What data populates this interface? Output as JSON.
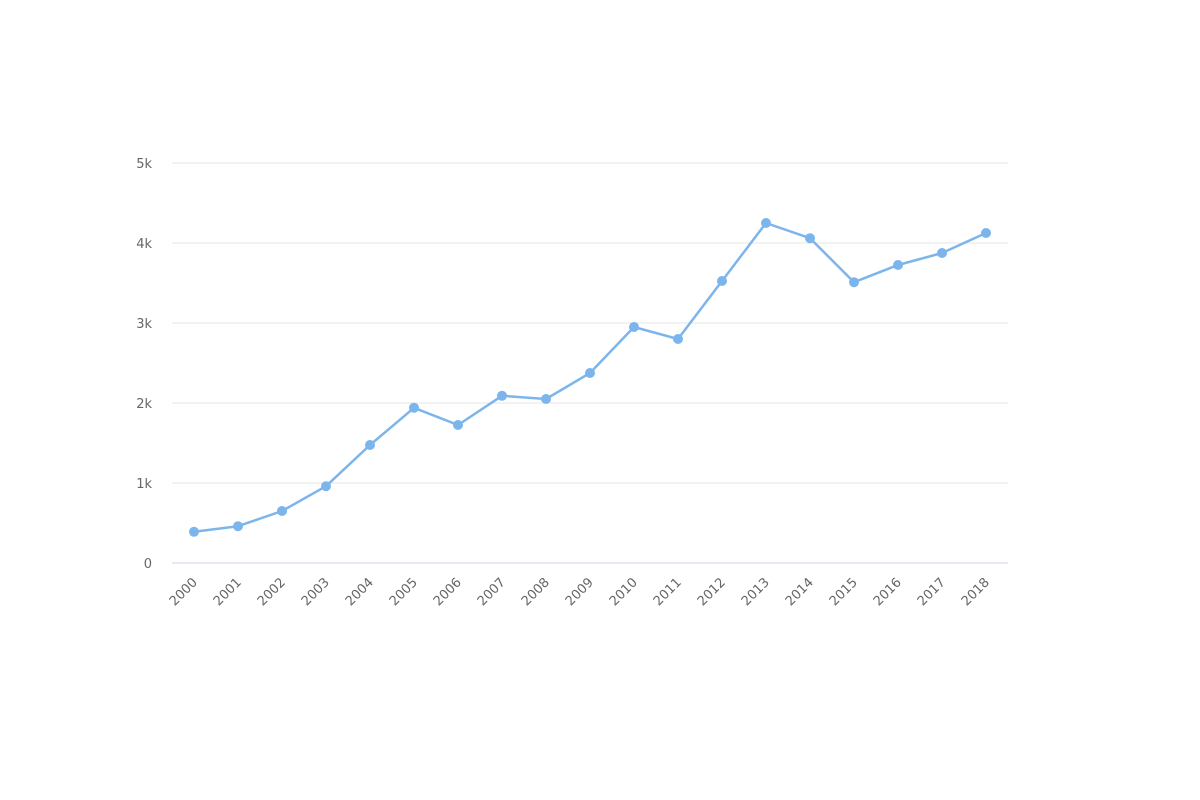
{
  "chart_data": {
    "type": "line",
    "categories": [
      "2000",
      "2001",
      "2002",
      "2003",
      "2004",
      "2005",
      "2006",
      "2007",
      "2008",
      "2009",
      "2010",
      "2011",
      "2012",
      "2013",
      "2014",
      "2015",
      "2016",
      "2017",
      "2018"
    ],
    "values": [
      390,
      460,
      650,
      960,
      1475,
      1940,
      1725,
      2090,
      2050,
      2375,
      2950,
      2800,
      3525,
      4250,
      4060,
      3510,
      3725,
      3875,
      4125
    ],
    "color": "#7cb5ec",
    "ylim": [
      0,
      5000
    ],
    "yticks": [
      0,
      {
        "value": 1000,
        "label": "1k"
      },
      {
        "value": 2000,
        "label": "2k"
      },
      {
        "value": 3000,
        "label": "3k"
      },
      {
        "value": 4000,
        "label": "4k"
      },
      {
        "value": 5000,
        "label": "5k"
      }
    ],
    "grid": true
  }
}
